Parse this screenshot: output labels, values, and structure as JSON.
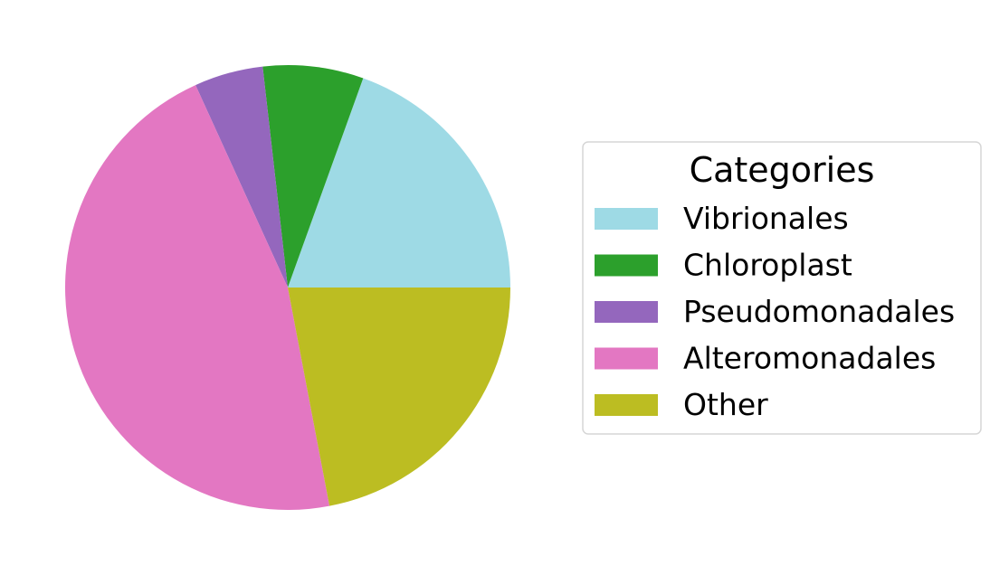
{
  "chart_data": {
    "type": "pie",
    "title": "",
    "start_angle_deg": 0,
    "direction": "counterclockwise",
    "slices": [
      {
        "label": "Vibrionales",
        "value": 19.5,
        "color": "#9edae5"
      },
      {
        "label": "Chloroplast",
        "value": 7.3,
        "color": "#2ca02c"
      },
      {
        "label": "Pseudomonadales",
        "value": 5.0,
        "color": "#9467bd"
      },
      {
        "label": "Alteromonadales",
        "value": 46.2,
        "color": "#e377c2"
      },
      {
        "label": "Other",
        "value": 22.0,
        "color": "#bcbd22"
      }
    ],
    "legend": {
      "title": "Categories",
      "placement": "right"
    }
  }
}
